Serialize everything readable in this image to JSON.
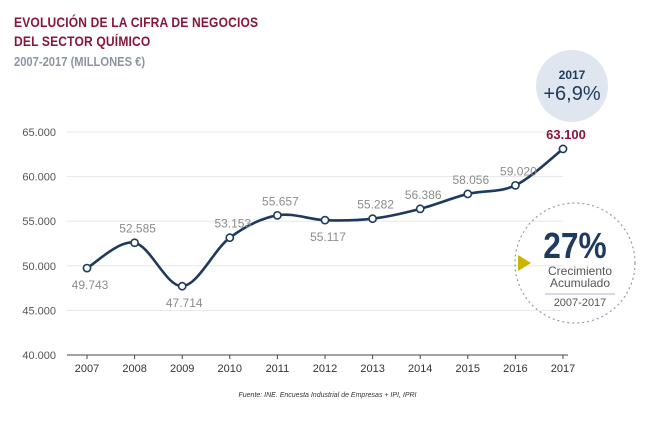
{
  "titles": {
    "line1": "EVOLUCIÓN DE LA CIFRA DE NEGOCIOS",
    "line2": "DEL SECTOR QUÍMICO",
    "subtitle": "2007-2017 (MILLONES €)"
  },
  "badge": {
    "year": "2017",
    "change": "+6,9%"
  },
  "growth": {
    "value": "27%",
    "line1": "Crecimiento",
    "line2": "Acumulado",
    "period": "2007-2017"
  },
  "source": "Fuente: INE. Encuesta Industrial de Empresas + IPI, IPRI",
  "colors": {
    "line": "#1f3a5f",
    "title": "#8a1538",
    "axis_text": "#8c8c8c",
    "highlight": "#8a1538",
    "arrow": "#c9b400"
  },
  "chart_data": {
    "type": "line",
    "title": "EVOLUCIÓN DE LA CIFRA DE NEGOCIOS DEL SECTOR QUÍMICO",
    "subtitle": "2007-2017 (MILLONES €)",
    "xlabel": "",
    "ylabel": "",
    "ylim": [
      40000,
      65000
    ],
    "yticks": [
      "40.000",
      "45.000",
      "50.000",
      "55.000",
      "60.000",
      "65.000"
    ],
    "grid": true,
    "x": [
      "2007",
      "2008",
      "2009",
      "2010",
      "2011",
      "2012",
      "2013",
      "2014",
      "2015",
      "2016",
      "2017"
    ],
    "series": [
      {
        "values": [
          49743,
          52585,
          47714,
          53153,
          55657,
          55117,
          55282,
          56386,
          58056,
          59020,
          63100
        ],
        "labels": [
          "49.743",
          "52.585",
          "47.714",
          "53.153",
          "55.657",
          "55.117",
          "55.282",
          "56.386",
          "58.056",
          "59.020",
          "63.100"
        ]
      }
    ]
  }
}
